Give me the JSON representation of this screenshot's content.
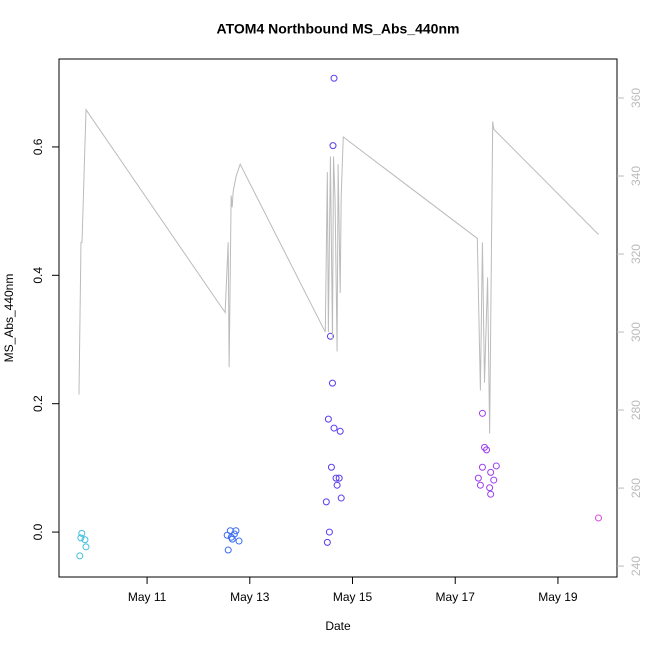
{
  "chart_data": {
    "type": "scatter",
    "title": "ATOM4 Northbound MS_Abs_440nm",
    "xlabel": "Date",
    "ylabel": "MS_Abs_440nm",
    "xlim": [
      9.285,
      20.15
    ],
    "ylim": [
      -0.07,
      0.737
    ],
    "y2lim": [
      237.2,
      370
    ],
    "xticks": [
      {
        "value": 11,
        "label": "May 11"
      },
      {
        "value": 13,
        "label": "May 13"
      },
      {
        "value": 15,
        "label": "May 15"
      },
      {
        "value": 17,
        "label": "May 17"
      },
      {
        "value": 19,
        "label": "May 19"
      }
    ],
    "yticks": [
      {
        "value": 0,
        "label": "0.0"
      },
      0.2,
      0.4,
      0.6
    ],
    "y2ticks": [
      240,
      260,
      280,
      300,
      320,
      340,
      360
    ],
    "series": [
      {
        "type": "scatter",
        "color": "#3fbfe0",
        "x": [
          9.69,
          9.71,
          9.73,
          9.79,
          9.81
        ],
        "values": [
          -0.037,
          -0.009,
          -0.002,
          -0.012,
          -0.023
        ]
      },
      {
        "type": "scatter",
        "color": "#3b6cf0",
        "x": [
          12.56,
          12.58,
          12.62,
          12.64,
          12.66,
          12.7,
          12.73,
          12.79
        ],
        "values": [
          -0.005,
          -0.028,
          0.002,
          -0.008,
          -0.011,
          -0.003,
          0.002,
          -0.014
        ]
      },
      {
        "type": "scatter",
        "color": "#5a3af0",
        "x": [
          14.49,
          14.51,
          14.53,
          14.55,
          14.57,
          14.59,
          14.61,
          14.62,
          14.64,
          14.64,
          14.68,
          14.7,
          14.74,
          14.76,
          14.78
        ],
        "values": [
          0.047,
          -0.016,
          0.176,
          0.0,
          0.305,
          0.101,
          0.232,
          0.602,
          0.707,
          0.162,
          0.084,
          0.073,
          0.084,
          0.157,
          0.053
        ]
      },
      {
        "type": "scatter",
        "color": "#9b3ef0",
        "x": [
          17.45,
          17.49,
          17.53,
          17.53,
          17.57,
          17.61,
          17.67,
          17.69,
          17.69,
          17.75,
          17.8
        ],
        "values": [
          0.084,
          0.073,
          0.101,
          0.185,
          0.132,
          0.128,
          0.069,
          0.093,
          0.059,
          0.081,
          0.103
        ]
      },
      {
        "type": "scatter",
        "color": "#e040e0",
        "x": [
          19.79
        ],
        "values": [
          0.022
        ]
      },
      {
        "type": "line",
        "axis": "y2",
        "color": "#bbbbbb",
        "x": [
          9.674,
          9.713,
          9.733,
          9.811,
          12.52,
          12.579,
          12.598,
          12.637,
          12.657,
          12.676,
          12.735,
          12.813,
          14.47,
          14.51,
          14.53,
          14.57,
          14.61,
          14.63,
          14.66,
          14.7,
          14.72,
          14.76,
          14.78,
          14.82,
          17.43,
          17.49,
          17.53,
          17.57,
          17.63,
          17.67,
          17.73,
          17.75,
          19.79
        ],
        "values": [
          284,
          323,
          323,
          357,
          305,
          323,
          291,
          335,
          332,
          336,
          340,
          343,
          300,
          341,
          300,
          345,
          298,
          345,
          334,
          295,
          343,
          310,
          335,
          350,
          324,
          285,
          323,
          287,
          314,
          274,
          354,
          352,
          325
        ]
      }
    ]
  }
}
